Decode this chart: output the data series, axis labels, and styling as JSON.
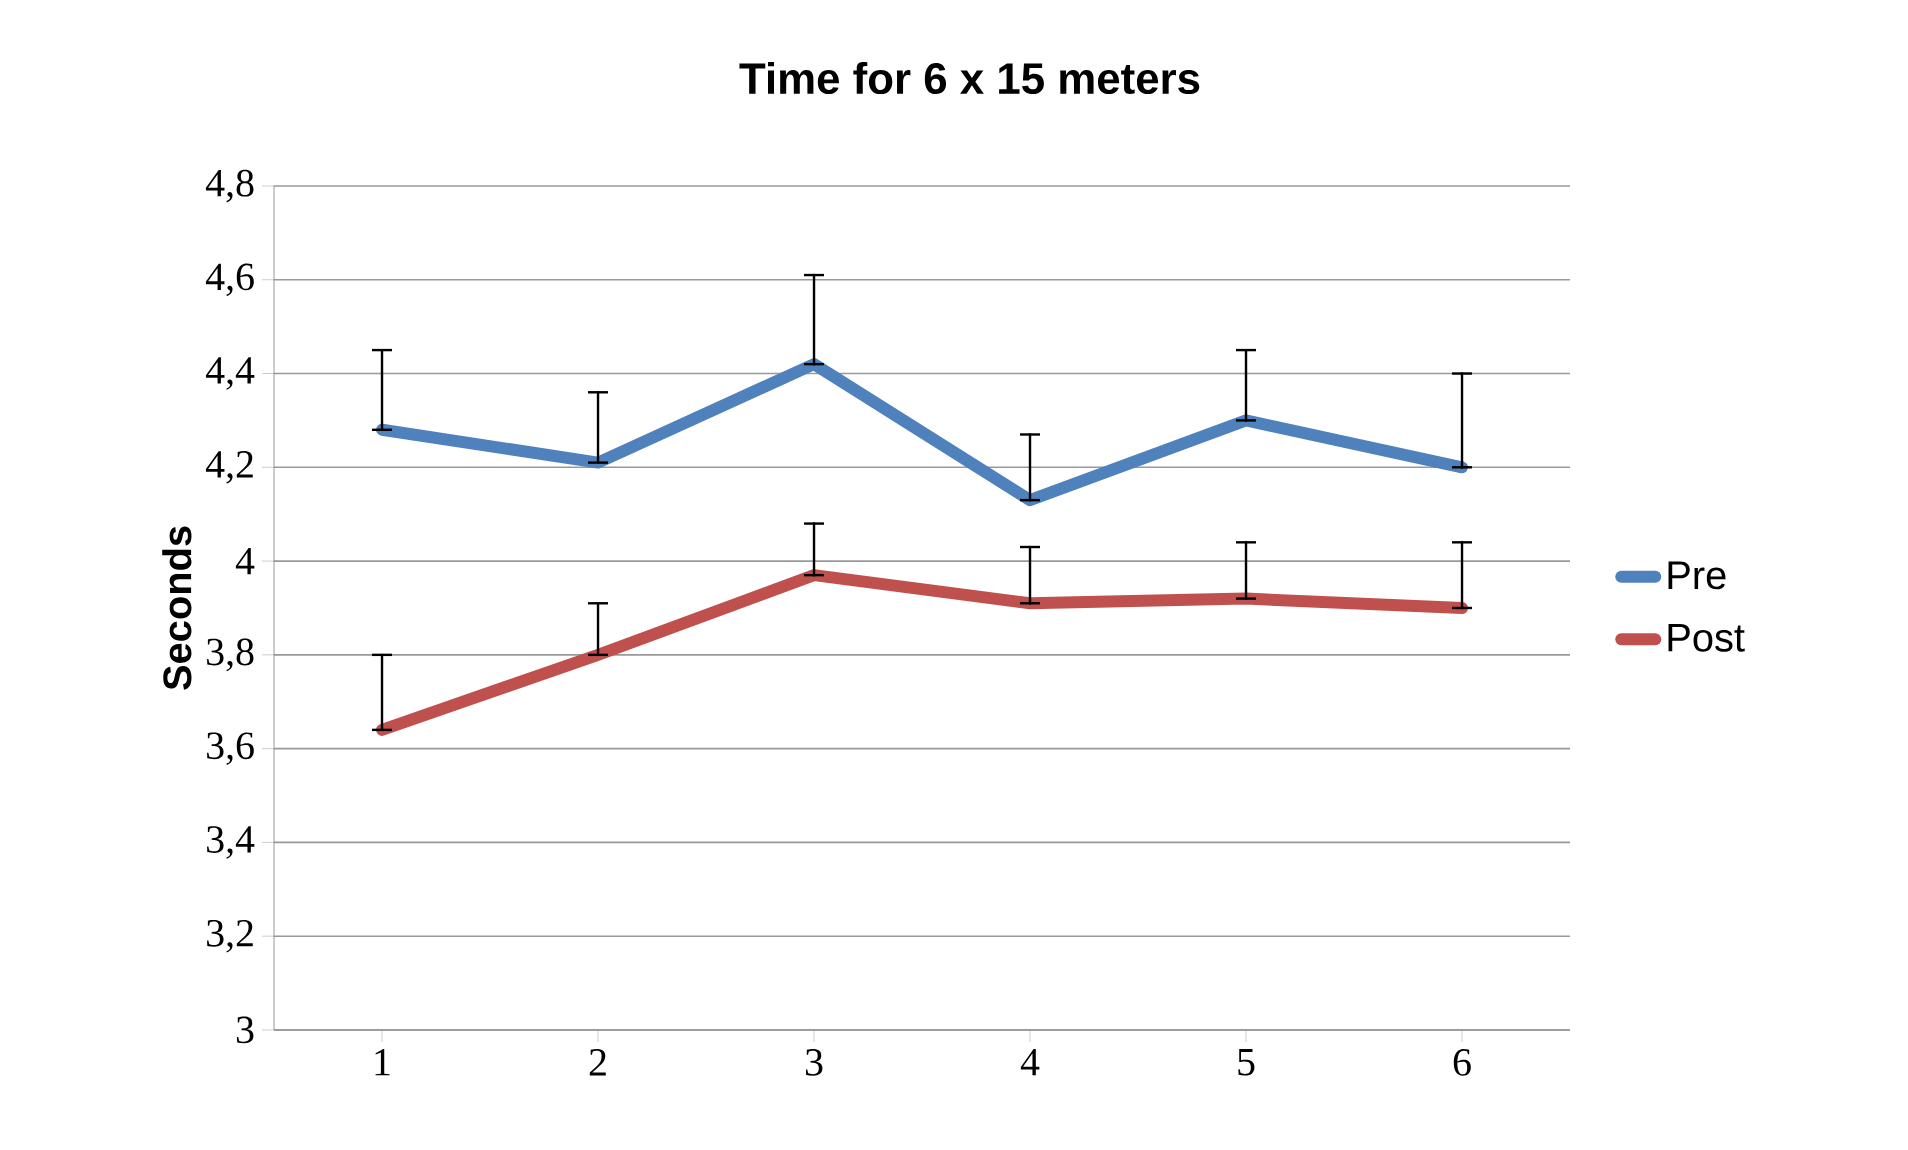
{
  "chart_data": {
    "type": "line",
    "title": "Time for 6 x 15 meters",
    "ylabel": "Seconds",
    "categories": [
      "1",
      "2",
      "3",
      "4",
      "5",
      "6"
    ],
    "series": [
      {
        "name": "Pre",
        "color": "#4f81bd",
        "values": [
          4.28,
          4.21,
          4.42,
          4.13,
          4.3,
          4.2
        ],
        "errors": [
          [
            4.28,
            4.45
          ],
          [
            4.21,
            4.36
          ],
          [
            4.42,
            4.61
          ],
          [
            4.13,
            4.27
          ],
          [
            4.3,
            4.45
          ],
          [
            4.2,
            4.4
          ]
        ]
      },
      {
        "name": "Post",
        "color": "#c0504d",
        "values": [
          3.64,
          3.8,
          3.97,
          3.91,
          3.92,
          3.9
        ],
        "errors": [
          [
            3.64,
            3.8
          ],
          [
            3.8,
            3.91
          ],
          [
            3.97,
            4.08
          ],
          [
            3.91,
            4.03
          ],
          [
            3.92,
            4.04
          ],
          [
            3.9,
            4.04
          ]
        ]
      }
    ],
    "ylim": [
      3,
      4.8
    ],
    "yticks": [
      3,
      {
        "value": 3.2,
        "label": "3,2"
      },
      {
        "value": 3.4,
        "label": "3,4"
      },
      {
        "value": 3.6,
        "label": "3,6"
      },
      {
        "value": 3.8,
        "label": "3,8"
      },
      4,
      {
        "value": 4.2,
        "label": "4,2"
      },
      {
        "value": 4.4,
        "label": "4,4"
      },
      {
        "value": 4.6,
        "label": "4,6"
      },
      {
        "value": 4.8,
        "label": "4,8"
      }
    ],
    "grid": "y",
    "legend": "right"
  }
}
